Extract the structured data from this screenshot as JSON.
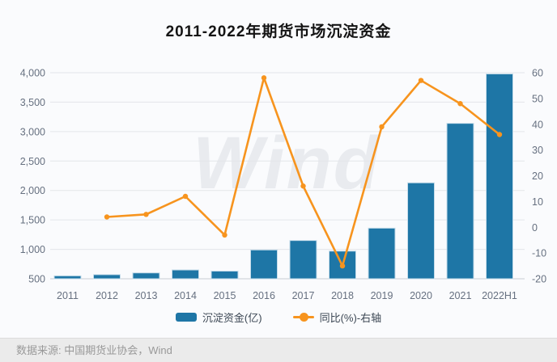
{
  "title": "2011-2022年期货市场沉淀资金",
  "watermark": "Wind",
  "legend": [
    {
      "label": "沉淀资金(亿)",
      "type": "bar",
      "color": "#1e76a6"
    },
    {
      "label": "同比(%)-右轴",
      "type": "line",
      "color": "#f7941e"
    }
  ],
  "footer": {
    "source_label": "数据来源: 中国期货业协会，Wind"
  },
  "chart_data": {
    "type": "bar",
    "combo": "bar+line dual axis",
    "title": "2011-2022年期货市场沉淀资金",
    "categories": [
      "2011",
      "2012",
      "2013",
      "2014",
      "2015",
      "2016",
      "2017",
      "2018",
      "2019",
      "2020",
      "2021",
      "2022H1"
    ],
    "series": [
      {
        "name": "沉淀资金(亿)",
        "type": "bar",
        "axis": "left",
        "color": "#1e76a6",
        "values": [
          550,
          570,
          600,
          650,
          630,
          990,
          1150,
          970,
          1360,
          2130,
          3140,
          3980
        ]
      },
      {
        "name": "同比(%)-右轴",
        "type": "line",
        "axis": "right",
        "color": "#f7941e",
        "values": [
          null,
          4,
          5,
          12,
          -3,
          58,
          16,
          -15,
          39,
          57,
          48,
          36
        ]
      }
    ],
    "left_axis": {
      "min": 500,
      "max": 4000,
      "step": 500,
      "tick_labels": [
        "500",
        "1,000",
        "1,500",
        "2,000",
        "2,500",
        "3,000",
        "3,500",
        "4,000"
      ]
    },
    "right_axis": {
      "min": -20,
      "max": 60,
      "step": 10,
      "tick_labels": [
        "-20",
        "-10",
        "0",
        "10",
        "20",
        "30",
        "40",
        "50",
        "60"
      ]
    },
    "xlabel": "",
    "ylabel": "",
    "grid": "horizontal only",
    "legend_position": "bottom"
  },
  "colors": {
    "bar": "#1e76a6",
    "bar_edge": "#c5dcea",
    "line": "#f7941e",
    "grid": "#e3e6ea",
    "axis_line": "#c8cdd3",
    "axis_text": "#667080",
    "background": "#fafbfd",
    "footer_bg": "#ebebeb"
  }
}
